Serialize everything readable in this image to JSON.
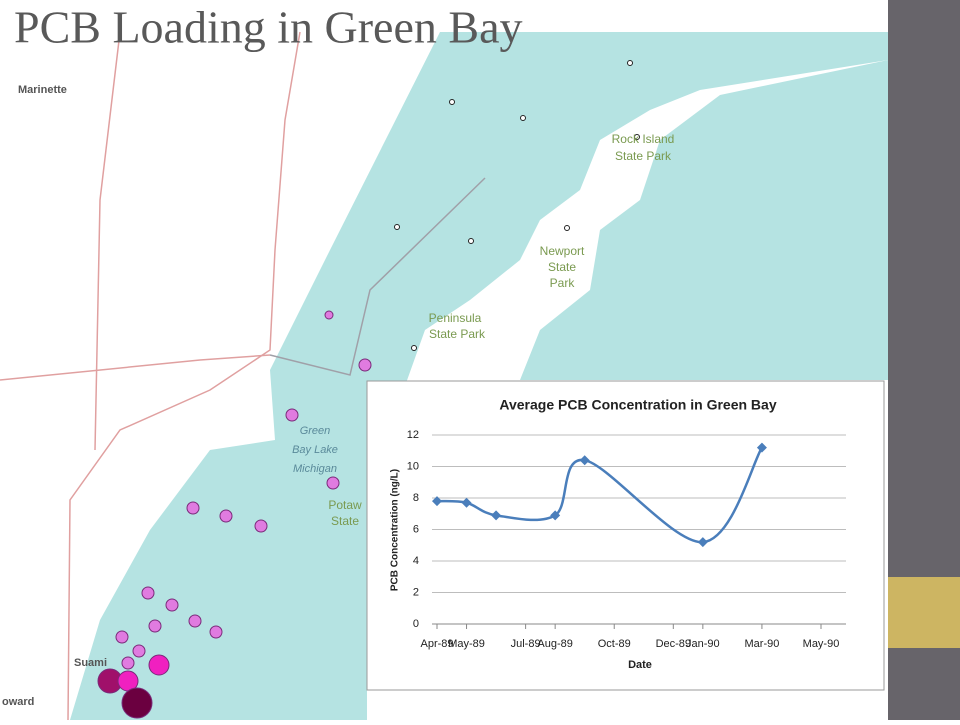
{
  "title": "PCB Loading in Green Bay",
  "map_labels": [
    "Marinette",
    "Rock Island",
    "State Park",
    "Newport",
    "State",
    "Park",
    "Peninsula",
    "State Park",
    "Green",
    "Bay Lake",
    "Michigan",
    "Potaw",
    "State",
    "Suami",
    "oward"
  ],
  "chart_data": {
    "type": "line",
    "title": "Average PCB Concentration in Green Bay",
    "xlabel": "Date",
    "ylabel": "PCB Concentration (ng/L)",
    "x": [
      "1989-04",
      "1989-05",
      "1989-06",
      "1989-08",
      "1989-09",
      "1990-01",
      "1990-03"
    ],
    "values": [
      7.8,
      7.7,
      6.9,
      6.9,
      10.4,
      5.2,
      11.2
    ],
    "color": "#4a7ebb",
    "marker": "diamond",
    "smooth": true,
    "xlim": [
      "1989-04",
      "1990-05"
    ],
    "xticks": [
      {
        "value": "1989-04",
        "label": "Apr-89"
      },
      {
        "value": "1989-05",
        "label": "May-89"
      },
      {
        "value": "1989-07",
        "label": "Jul-89"
      },
      {
        "value": "1989-08",
        "label": "Aug-89"
      },
      {
        "value": "1989-10",
        "label": "Oct-89"
      },
      {
        "value": "1989-12",
        "label": "Dec-89"
      },
      {
        "value": "1990-01",
        "label": "Jan-90"
      },
      {
        "value": "1990-03",
        "label": "Mar-90"
      },
      {
        "value": "1990-05",
        "label": "May-90"
      }
    ],
    "ylim": [
      0,
      12
    ],
    "yticks": [
      0,
      2,
      4,
      6,
      8,
      10,
      12
    ],
    "grid": true
  }
}
